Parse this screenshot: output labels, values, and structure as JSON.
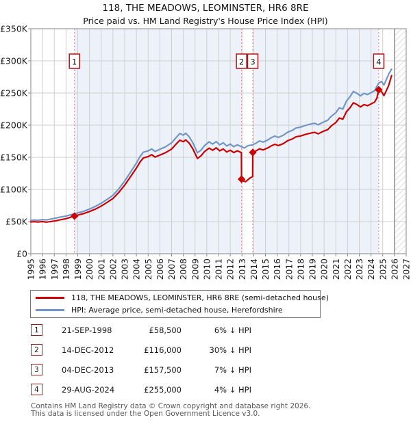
{
  "title": "118, THE MEADOWS, LEOMINSTER, HR6 8RE",
  "subtitle": "Price paid vs. HM Land Registry's House Price Index (HPI)",
  "chart_data": {
    "type": "line",
    "x_axis": {
      "min": 1995,
      "max": 2027,
      "years": [
        1995,
        1996,
        1997,
        1998,
        1999,
        2000,
        2001,
        2002,
        2003,
        2004,
        2005,
        2006,
        2007,
        2008,
        2009,
        2010,
        2011,
        2012,
        2013,
        2014,
        2015,
        2016,
        2017,
        2018,
        2019,
        2020,
        2021,
        2022,
        2023,
        2024,
        2025,
        2026,
        2027
      ]
    },
    "y_axis": {
      "min": 0,
      "max": 350000,
      "ticks": [
        {
          "value": 0,
          "label": "£0"
        },
        {
          "value": 50000,
          "label": "£50K"
        },
        {
          "value": 100000,
          "label": "£100K"
        },
        {
          "value": 150000,
          "label": "£150K"
        },
        {
          "value": 200000,
          "label": "£200K"
        },
        {
          "value": 250000,
          "label": "£250K"
        },
        {
          "value": 300000,
          "label": "£300K"
        },
        {
          "value": 350000,
          "label": "£350K"
        }
      ]
    },
    "styles": {
      "price_color": "#cc0000",
      "hpi_color": "#7096c7",
      "band_color": "#edf2fa",
      "marker_line_color": "#ef8f96",
      "hatch_color": "#c6c6ce",
      "grid_color": "#cfcfcf",
      "border_color": "#999999",
      "badge_border_color": "#b01218"
    },
    "sale_bands": [
      [
        1998.72,
        2012.96
      ],
      [
        2013.92,
        2024.66
      ]
    ],
    "future_band": [
      2026,
      2027
    ],
    "markers": [
      {
        "label": "1",
        "date": "21-SEP-1998",
        "year": 1998.72,
        "price": 58500
      },
      {
        "label": "2",
        "date": "14-DEC-2012",
        "year": 2012.96,
        "price": 116000
      },
      {
        "label": "3",
        "date": "04-DEC-2013",
        "year": 2013.92,
        "price": 157500
      },
      {
        "label": "4",
        "date": "29-AUG-2024",
        "year": 2024.66,
        "price": 255000
      }
    ],
    "series": [
      {
        "name": "118, THE MEADOWS, LEOMINSTER, HR6 8RE (semi-detached house)",
        "color": "#cc0000",
        "points": [
          [
            1995.0,
            49500
          ],
          [
            1995.3,
            49800
          ],
          [
            1995.6,
            49300
          ],
          [
            1996.0,
            50000
          ],
          [
            1996.3,
            49200
          ],
          [
            1996.6,
            49800
          ],
          [
            1997.0,
            50800
          ],
          [
            1997.5,
            52800
          ],
          [
            1998.0,
            54500
          ],
          [
            1998.4,
            56800
          ],
          [
            1998.72,
            58500
          ],
          [
            1999.0,
            60000
          ],
          [
            1999.5,
            62400
          ],
          [
            2000.0,
            65600
          ],
          [
            2000.5,
            69400
          ],
          [
            2001.0,
            74100
          ],
          [
            2001.5,
            79800
          ],
          [
            2002.0,
            86000
          ],
          [
            2002.5,
            95400
          ],
          [
            2003.0,
            106700
          ],
          [
            2003.5,
            120000
          ],
          [
            2004.0,
            133200
          ],
          [
            2004.3,
            142600
          ],
          [
            2004.6,
            149200
          ],
          [
            2005.0,
            151100
          ],
          [
            2005.3,
            154000
          ],
          [
            2005.6,
            150200
          ],
          [
            2006.0,
            153500
          ],
          [
            2006.5,
            157300
          ],
          [
            2007.0,
            162900
          ],
          [
            2007.4,
            171000
          ],
          [
            2007.7,
            176600
          ],
          [
            2008.0,
            174300
          ],
          [
            2008.2,
            177100
          ],
          [
            2008.5,
            171900
          ],
          [
            2008.8,
            163400
          ],
          [
            2009.2,
            148300
          ],
          [
            2009.5,
            152100
          ],
          [
            2009.8,
            158700
          ],
          [
            2010.2,
            164300
          ],
          [
            2010.5,
            161000
          ],
          [
            2010.8,
            164800
          ],
          [
            2011.1,
            160100
          ],
          [
            2011.4,
            162900
          ],
          [
            2011.7,
            158200
          ],
          [
            2012.0,
            161000
          ],
          [
            2012.3,
            157300
          ],
          [
            2012.6,
            160100
          ],
          [
            2012.95,
            157300
          ],
          [
            2012.96,
            116000
          ],
          [
            2013.1,
            113500
          ],
          [
            2013.3,
            112000
          ],
          [
            2013.5,
            115000
          ],
          [
            2013.7,
            118000
          ],
          [
            2013.91,
            120000
          ],
          [
            2013.92,
            157500
          ],
          [
            2014.2,
            160000
          ],
          [
            2014.5,
            163200
          ],
          [
            2014.8,
            161400
          ],
          [
            2015.2,
            164600
          ],
          [
            2015.5,
            167900
          ],
          [
            2015.8,
            170200
          ],
          [
            2016.1,
            168300
          ],
          [
            2016.5,
            171100
          ],
          [
            2016.9,
            175800
          ],
          [
            2017.3,
            178600
          ],
          [
            2017.6,
            181800
          ],
          [
            2018.0,
            183200
          ],
          [
            2018.4,
            185500
          ],
          [
            2018.8,
            187400
          ],
          [
            2019.2,
            188800
          ],
          [
            2019.5,
            186500
          ],
          [
            2019.9,
            190200
          ],
          [
            2020.3,
            193000
          ],
          [
            2020.6,
            198600
          ],
          [
            2021.0,
            204100
          ],
          [
            2021.3,
            211100
          ],
          [
            2021.6,
            209300
          ],
          [
            2021.9,
            220900
          ],
          [
            2022.2,
            226900
          ],
          [
            2022.5,
            234800
          ],
          [
            2022.8,
            232000
          ],
          [
            2023.1,
            228300
          ],
          [
            2023.4,
            232000
          ],
          [
            2023.7,
            230200
          ],
          [
            2024.0,
            233000
          ],
          [
            2024.3,
            235800
          ],
          [
            2024.5,
            242000
          ],
          [
            2024.66,
            255000
          ],
          [
            2024.9,
            252000
          ],
          [
            2025.1,
            246000
          ],
          [
            2025.3,
            253500
          ],
          [
            2025.5,
            261500
          ],
          [
            2025.75,
            277000
          ]
        ]
      },
      {
        "name": "HPI: Average price, semi-detached house, Herefordshire",
        "color": "#7096c7",
        "points": [
          [
            1995.0,
            52000
          ],
          [
            1995.3,
            52300
          ],
          [
            1995.6,
            52000
          ],
          [
            1996.0,
            53000
          ],
          [
            1996.3,
            52500
          ],
          [
            1996.6,
            53500
          ],
          [
            1997.0,
            55000
          ],
          [
            1997.5,
            57000
          ],
          [
            1998.0,
            58500
          ],
          [
            1998.4,
            60500
          ],
          [
            1998.72,
            62000
          ],
          [
            1999.0,
            63500
          ],
          [
            1999.5,
            66000
          ],
          [
            2000.0,
            69500
          ],
          [
            2000.5,
            73500
          ],
          [
            2001.0,
            78500
          ],
          [
            2001.5,
            84500
          ],
          [
            2002.0,
            91000
          ],
          [
            2002.5,
            101000
          ],
          [
            2003.0,
            113000
          ],
          [
            2003.5,
            127000
          ],
          [
            2004.0,
            141000
          ],
          [
            2004.3,
            151000
          ],
          [
            2004.6,
            158000
          ],
          [
            2005.0,
            160000
          ],
          [
            2005.3,
            163000
          ],
          [
            2005.6,
            159000
          ],
          [
            2006.0,
            162500
          ],
          [
            2006.5,
            166500
          ],
          [
            2007.0,
            172500
          ],
          [
            2007.4,
            181000
          ],
          [
            2007.7,
            187000
          ],
          [
            2008.0,
            184500
          ],
          [
            2008.2,
            187500
          ],
          [
            2008.5,
            182000
          ],
          [
            2008.8,
            173000
          ],
          [
            2009.2,
            157000
          ],
          [
            2009.5,
            161000
          ],
          [
            2009.8,
            168000
          ],
          [
            2010.2,
            174000
          ],
          [
            2010.5,
            170500
          ],
          [
            2010.8,
            174500
          ],
          [
            2011.1,
            169500
          ],
          [
            2011.4,
            172500
          ],
          [
            2011.7,
            167500
          ],
          [
            2012.0,
            170500
          ],
          [
            2012.3,
            166500
          ],
          [
            2012.6,
            169500
          ],
          [
            2012.95,
            166500
          ],
          [
            2013.2,
            164500
          ],
          [
            2013.5,
            168000
          ],
          [
            2013.92,
            169500
          ],
          [
            2014.2,
            172000
          ],
          [
            2014.5,
            175500
          ],
          [
            2014.8,
            173500
          ],
          [
            2015.2,
            177000
          ],
          [
            2015.5,
            180500
          ],
          [
            2015.8,
            183000
          ],
          [
            2016.1,
            181000
          ],
          [
            2016.5,
            184000
          ],
          [
            2016.9,
            189000
          ],
          [
            2017.3,
            192000
          ],
          [
            2017.6,
            195500
          ],
          [
            2018.0,
            197000
          ],
          [
            2018.4,
            199500
          ],
          [
            2018.8,
            201500
          ],
          [
            2019.2,
            203000
          ],
          [
            2019.5,
            200500
          ],
          [
            2019.9,
            204500
          ],
          [
            2020.3,
            207500
          ],
          [
            2020.6,
            213500
          ],
          [
            2021.0,
            219500
          ],
          [
            2021.3,
            227000
          ],
          [
            2021.6,
            225000
          ],
          [
            2021.9,
            237500
          ],
          [
            2022.2,
            244000
          ],
          [
            2022.5,
            252500
          ],
          [
            2022.8,
            249500
          ],
          [
            2023.1,
            245500
          ],
          [
            2023.4,
            249500
          ],
          [
            2023.7,
            247500
          ],
          [
            2024.0,
            250500
          ],
          [
            2024.3,
            253500
          ],
          [
            2024.66,
            265500
          ],
          [
            2024.9,
            268000
          ],
          [
            2025.1,
            262500
          ],
          [
            2025.3,
            270500
          ],
          [
            2025.5,
            279000
          ],
          [
            2025.75,
            287000
          ]
        ]
      }
    ]
  },
  "legend": {
    "entries": [
      {
        "label": "118, THE MEADOWS, LEOMINSTER, HR6 8RE (semi-detached house)",
        "color": "#cc0000"
      },
      {
        "label": "HPI: Average price, semi-detached house, Herefordshire",
        "color": "#7096c7"
      }
    ]
  },
  "table": {
    "rows": [
      {
        "num": "1",
        "date": "21-SEP-1998",
        "price": "£58,500",
        "vs_hpi": "6% ↓ HPI"
      },
      {
        "num": "2",
        "date": "14-DEC-2012",
        "price": "£116,000",
        "vs_hpi": "30% ↓ HPI"
      },
      {
        "num": "3",
        "date": "04-DEC-2013",
        "price": "£157,500",
        "vs_hpi": "7% ↓ HPI"
      },
      {
        "num": "4",
        "date": "29-AUG-2024",
        "price": "£255,000",
        "vs_hpi": "4% ↓ HPI"
      }
    ]
  },
  "footer": {
    "line1": "Contains HM Land Registry data © Crown copyright and database right 2026.",
    "line2": "This data is licensed under the Open Government Licence v3.0."
  }
}
